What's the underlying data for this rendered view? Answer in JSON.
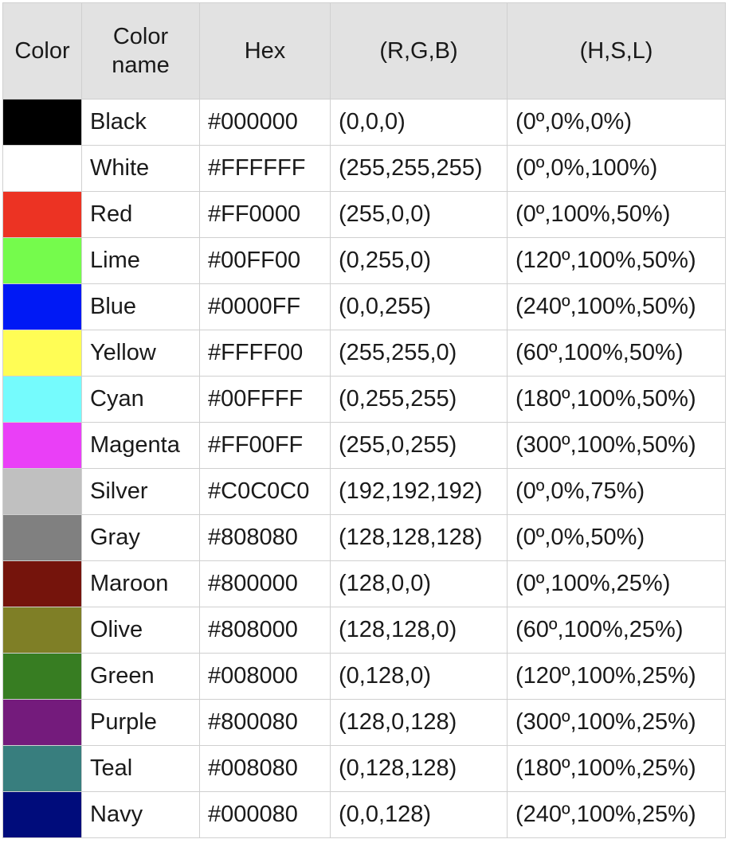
{
  "headers": {
    "color": "Color",
    "name": "Color name",
    "hex": "Hex",
    "rgb": "(R,G,B)",
    "hsl": "(H,S,L)"
  },
  "rows": [
    {
      "swatch": "#000000",
      "name": "Black",
      "hex": "#000000",
      "rgb": "(0,0,0)",
      "hsl": "(0º,0%,0%)"
    },
    {
      "swatch": "#FFFFFF",
      "name": "White",
      "hex": "#FFFFFF",
      "rgb": "(255,255,255)",
      "hsl": "(0º,0%,100%)"
    },
    {
      "swatch": "#EC3323",
      "name": "Red",
      "hex": "#FF0000",
      "rgb": "(255,0,0)",
      "hsl": "(0º,100%,50%)"
    },
    {
      "swatch": "#75FB4C",
      "name": "Lime",
      "hex": "#00FF00",
      "rgb": "(0,255,0)",
      "hsl": "(120º,100%,50%)"
    },
    {
      "swatch": "#0019F5",
      "name": "Blue",
      "hex": "#0000FF",
      "rgb": "(0,0,255)",
      "hsl": "(240º,100%,50%)"
    },
    {
      "swatch": "#FFFD55",
      "name": "Yellow",
      "hex": "#FFFF00",
      "rgb": "(255,255,0)",
      "hsl": "(60º,100%,50%)"
    },
    {
      "swatch": "#75FBFD",
      "name": "Cyan",
      "hex": "#00FFFF",
      "rgb": "(0,255,255)",
      "hsl": "(180º,100%,50%)"
    },
    {
      "swatch": "#EA3FF7",
      "name": "Magenta",
      "hex": "#FF00FF",
      "rgb": "(255,0,255)",
      "hsl": "(300º,100%,50%)"
    },
    {
      "swatch": "#C0C0C0",
      "name": "Silver",
      "hex": "#C0C0C0",
      "rgb": "(192,192,192)",
      "hsl": "(0º,0%,75%)"
    },
    {
      "swatch": "#808080",
      "name": "Gray",
      "hex": "#808080",
      "rgb": "(128,128,128)",
      "hsl": "(0º,0%,50%)"
    },
    {
      "swatch": "#75140C",
      "name": "Maroon",
      "hex": "#800000",
      "rgb": "(128,0,0)",
      "hsl": "(0º,100%,25%)"
    },
    {
      "swatch": "#7F7F26",
      "name": "Olive",
      "hex": "#808000",
      "rgb": "(128,128,0)",
      "hsl": "(60º,100%,25%)"
    },
    {
      "swatch": "#377D22",
      "name": "Green",
      "hex": "#008000",
      "rgb": "(0,128,0)",
      "hsl": "(120º,100%,25%)"
    },
    {
      "swatch": "#741B7C",
      "name": "Purple",
      "hex": "#800080",
      "rgb": "(128,0,128)",
      "hsl": "(300º,100%,25%)"
    },
    {
      "swatch": "#387E7E",
      "name": "Teal",
      "hex": "#008080",
      "rgb": "(0,128,128)",
      "hsl": "(180º,100%,25%)"
    },
    {
      "swatch": "#000C7B",
      "name": "Navy",
      "hex": "#000080",
      "rgb": "(0,0,128)",
      "hsl": "(240º,100%,25%)"
    }
  ]
}
